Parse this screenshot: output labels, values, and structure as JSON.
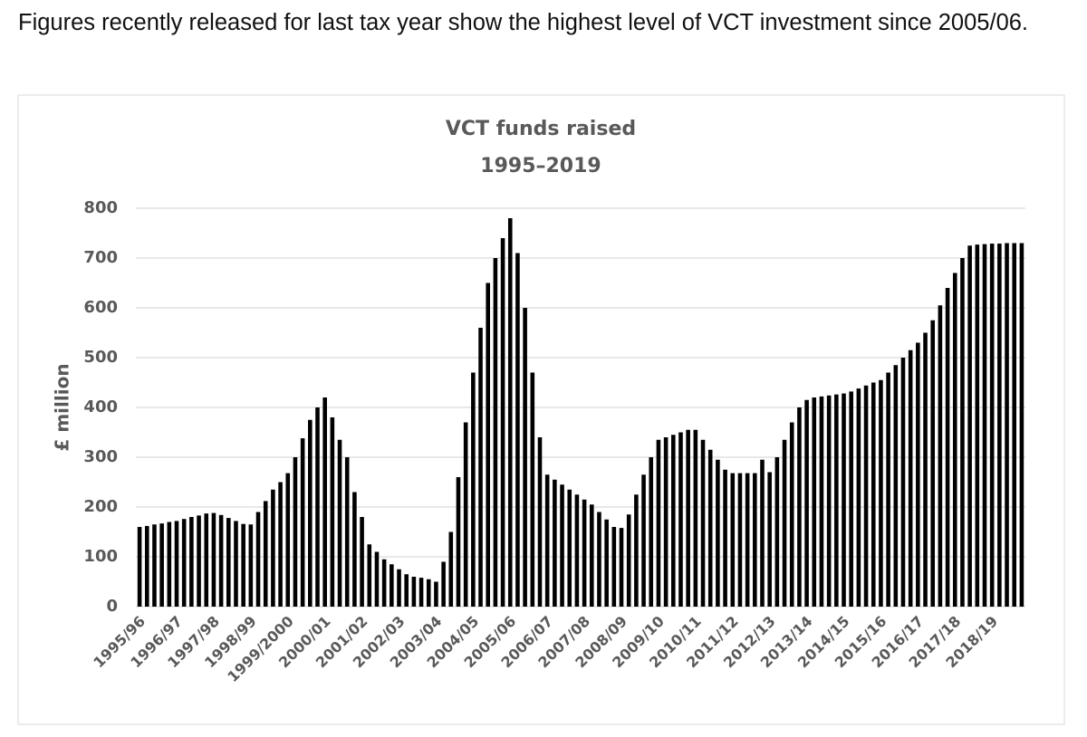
{
  "intro": "Figures recently released for last tax year show the highest level of VCT investment since 2005/06.",
  "chart_data": {
    "type": "bar",
    "title": "VCT funds raised",
    "subtitle": "1995–2019",
    "y_label": "£ million",
    "color": "#000000",
    "grid": true,
    "ylim": [
      0,
      800
    ],
    "yticks": [
      0,
      100,
      200,
      300,
      400,
      500,
      600,
      700,
      800
    ],
    "categories": [
      "1995/96",
      null,
      null,
      null,
      null,
      "1996/97",
      null,
      null,
      null,
      null,
      "1997/98",
      null,
      null,
      null,
      null,
      "1998/99",
      null,
      null,
      null,
      null,
      "1999/2000",
      null,
      null,
      null,
      null,
      "2000/01",
      null,
      null,
      null,
      null,
      "2001/02",
      null,
      null,
      null,
      null,
      "2002/03",
      null,
      null,
      null,
      null,
      "2003/04",
      null,
      null,
      null,
      null,
      "2004/05",
      null,
      null,
      null,
      null,
      "2005/06",
      null,
      null,
      null,
      null,
      "2006/07",
      null,
      null,
      null,
      null,
      "2007/08",
      null,
      null,
      null,
      null,
      "2008/09",
      null,
      null,
      null,
      null,
      "2009/10",
      null,
      null,
      null,
      null,
      "2010/11",
      null,
      null,
      null,
      null,
      "2011/12",
      null,
      null,
      null,
      null,
      "2012/13",
      null,
      null,
      null,
      null,
      "2013/14",
      null,
      null,
      null,
      null,
      "2014/15",
      null,
      null,
      null,
      null,
      "2015/16",
      null,
      null,
      null,
      null,
      "2016/17",
      null,
      null,
      null,
      null,
      "2017/18",
      null,
      null,
      null,
      null,
      "2018/19",
      null,
      null,
      null,
      null
    ],
    "values": [
      160,
      162,
      165,
      167,
      170,
      172,
      176,
      180,
      183,
      187,
      188,
      184,
      178,
      172,
      166,
      165,
      190,
      212,
      235,
      250,
      268,
      300,
      338,
      375,
      400,
      420,
      380,
      335,
      300,
      230,
      180,
      125,
      110,
      95,
      85,
      75,
      65,
      60,
      58,
      55,
      50,
      90,
      150,
      260,
      370,
      470,
      560,
      650,
      700,
      740,
      780,
      710,
      600,
      470,
      340,
      265,
      255,
      245,
      235,
      225,
      215,
      205,
      190,
      175,
      160,
      158,
      185,
      225,
      265,
      300,
      335,
      340,
      345,
      350,
      355,
      355,
      335,
      315,
      295,
      275,
      268,
      268,
      268,
      268,
      295,
      270,
      300,
      335,
      370,
      400,
      415,
      420,
      422,
      424,
      426,
      428,
      432,
      438,
      444,
      450,
      455,
      470,
      485,
      500,
      515,
      530,
      550,
      575,
      605,
      640,
      670,
      700,
      725,
      727,
      728,
      729,
      729,
      730,
      730,
      730
    ]
  }
}
